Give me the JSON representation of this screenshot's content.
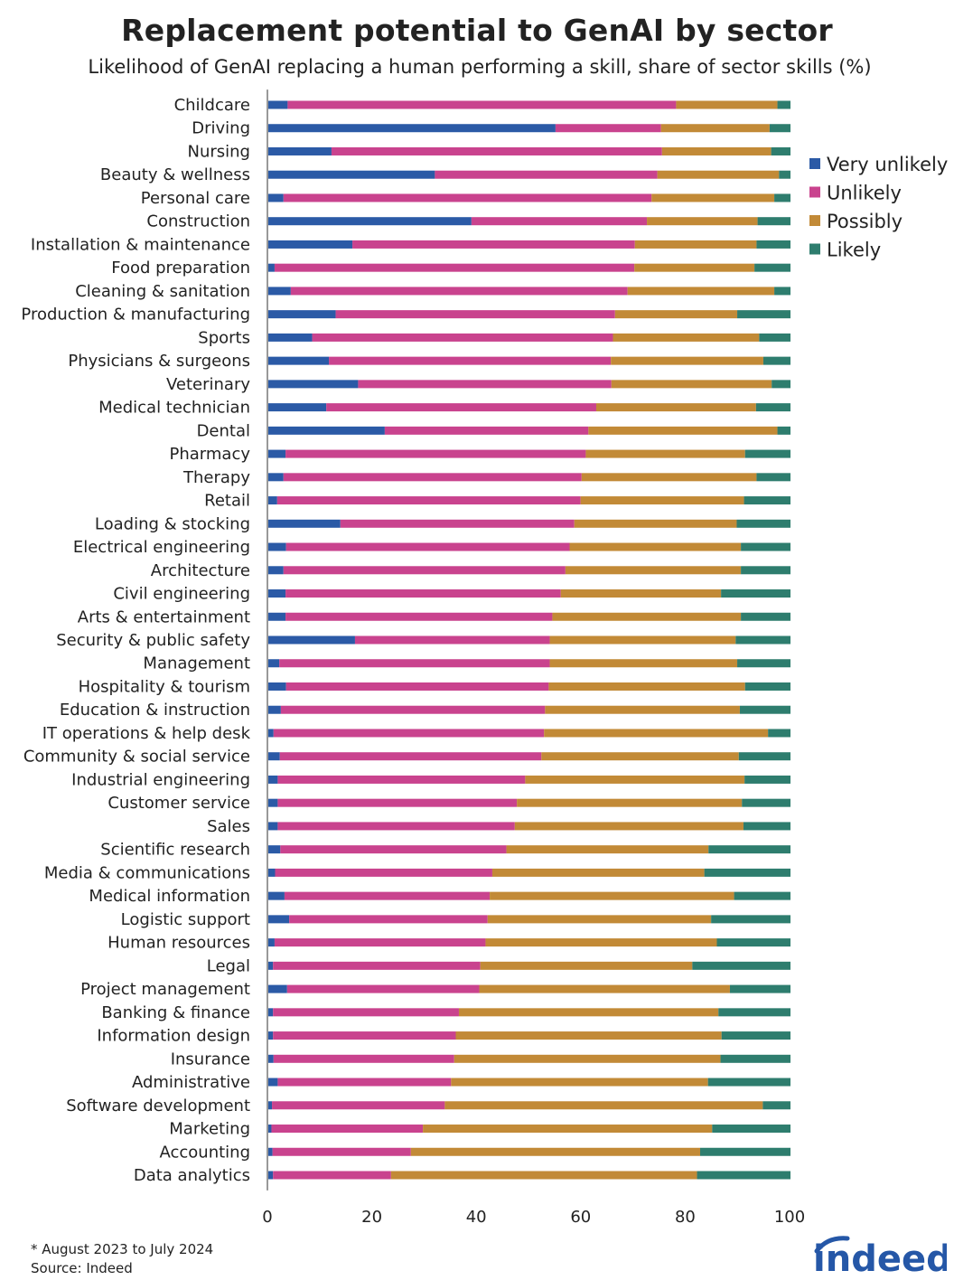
{
  "title": "Replacement potential to GenAI by sector",
  "subtitle": "Likelihood of GenAI replacing a human performing a skill, share of sector skills (%)",
  "footnote": "* August 2023 to July 2024",
  "source": "Source: Indeed",
  "logo_text": "indeed",
  "colors": {
    "Very unlikely": "#2b5aa6",
    "Unlikely": "#c9438e",
    "Possibly": "#c28a37",
    "Likely": "#2e7d6e"
  },
  "chart_data": {
    "type": "bar",
    "orientation": "horizontal",
    "stacked": true,
    "title": "Replacement potential to GenAI by sector",
    "subtitle": "Likelihood of GenAI replacing a human performing a skill, share of sector skills (%)",
    "xlabel": "",
    "ylabel": "",
    "xlim": [
      0,
      100
    ],
    "xticks": [
      "0",
      "20",
      "40",
      "60",
      "80",
      "100"
    ],
    "legend_position": "right",
    "categories": [
      "Childcare",
      "Driving",
      "Nursing",
      "Beauty & wellness",
      "Personal care",
      "Construction",
      "Installation & maintenance",
      "Food preparation",
      "Cleaning & sanitation",
      "Production & manufacturing",
      "Sports",
      "Physicians & surgeons",
      "Veterinary",
      "Medical technician",
      "Dental",
      "Pharmacy",
      "Therapy",
      "Retail",
      "Loading & stocking",
      "Electrical engineering",
      "Architecture",
      "Civil engineering",
      "Arts & entertainment",
      "Security & public safety",
      "Management",
      "Hospitality & tourism",
      "Education & instruction",
      "IT operations & help desk",
      "Community & social service",
      "Industrial engineering",
      "Customer service",
      "Sales",
      "Scientific research",
      "Media & communications",
      "Medical information",
      "Logistic support",
      "Human resources",
      "Legal",
      "Project management",
      "Banking & finance",
      "Information design",
      "Insurance",
      "Administrative",
      "Software development",
      "Marketing",
      "Accounting",
      "Data analytics"
    ],
    "series": [
      {
        "name": "Very unlikely",
        "values": [
          3.7,
          55,
          12.1,
          31.9,
          2.9,
          38.9,
          16.1,
          1.2,
          4.3,
          12.9,
          8.4,
          11.6,
          17.2,
          11.1,
          22.3,
          3.3,
          2.9,
          1.7,
          13.8,
          3.4,
          2.9,
          3.3,
          3.3,
          16.6,
          2.1,
          3.4,
          2.4,
          1,
          2.2,
          1.8,
          1.8,
          1.8,
          2.3,
          1.3,
          3.1,
          4,
          1.2,
          0.9,
          3.6,
          0.9,
          0.9,
          1,
          1.8,
          0.7,
          0.6,
          0.8,
          0.9
        ],
        "segments": [
          3.7,
          55,
          12.1,
          31.9,
          2.9,
          38.9,
          16.1,
          1.2,
          4.3,
          12.9,
          8.4,
          11.6,
          17.2,
          11.1,
          22.3,
          3.3,
          2.9,
          1.7,
          13.8,
          3.4,
          2.9,
          3.3,
          3.3,
          16.6,
          2.1,
          3.4,
          2.4,
          1,
          2.2,
          1.8,
          1.8,
          1.8,
          2.3,
          1.3,
          3.1,
          4,
          1.2,
          0.9,
          3.6,
          0.9,
          0.9,
          1,
          1.8,
          0.7,
          0.6,
          0.8,
          0.9
        ]
      },
      {
        "name": "Unlikely",
        "values": [
          74.4,
          20.2,
          63.3,
          42.6,
          70.5,
          33.6,
          54.1,
          68.9,
          64.5,
          53.5,
          57.6,
          54,
          48.5,
          51.7,
          39,
          57.5,
          57.1,
          58.1,
          44.8,
          54.3,
          54,
          52.7,
          51.1,
          37.3,
          51.8,
          50.3,
          50.6,
          51.8,
          50.1,
          47.4,
          45.8,
          45.4,
          43.3,
          41.6,
          39.3,
          38,
          40.4,
          39.7,
          36.8,
          35.6,
          35,
          34.6,
          33.2,
          33.1,
          29,
          26.5,
          22.6
        ]
      },
      {
        "name": "Possibly",
        "values": [
          19.4,
          20.8,
          20.9,
          23.3,
          23.5,
          21.2,
          23.3,
          23,
          28.1,
          23.4,
          28,
          29.2,
          30.7,
          30.6,
          36.2,
          30.5,
          33.5,
          31.3,
          31.1,
          32.8,
          33.6,
          30.7,
          36.1,
          35.6,
          35.9,
          37.6,
          37.3,
          42.9,
          37.8,
          42,
          43.1,
          43.8,
          38.7,
          40.6,
          46.8,
          42.8,
          44.3,
          40.6,
          48,
          49.7,
          50.9,
          51,
          49.2,
          60.9,
          55.4,
          55.4,
          58.6
        ]
      },
      {
        "name": "Likely",
        "values": [
          2.5,
          4,
          3.7,
          2.2,
          3.1,
          6.3,
          6.5,
          6.9,
          3.1,
          10.2,
          6,
          5.2,
          3.6,
          6.6,
          2.5,
          8.7,
          6.5,
          8.9,
          10.3,
          9.5,
          9.5,
          13.3,
          9.5,
          10.5,
          10.2,
          8.7,
          9.7,
          4.3,
          9.9,
          8.8,
          9.3,
          9,
          15.7,
          16.5,
          10.8,
          15.2,
          14.1,
          18.8,
          11.6,
          13.8,
          13.2,
          13.4,
          15.8,
          5.3,
          15,
          17.3,
          17.9
        ]
      }
    ]
  }
}
